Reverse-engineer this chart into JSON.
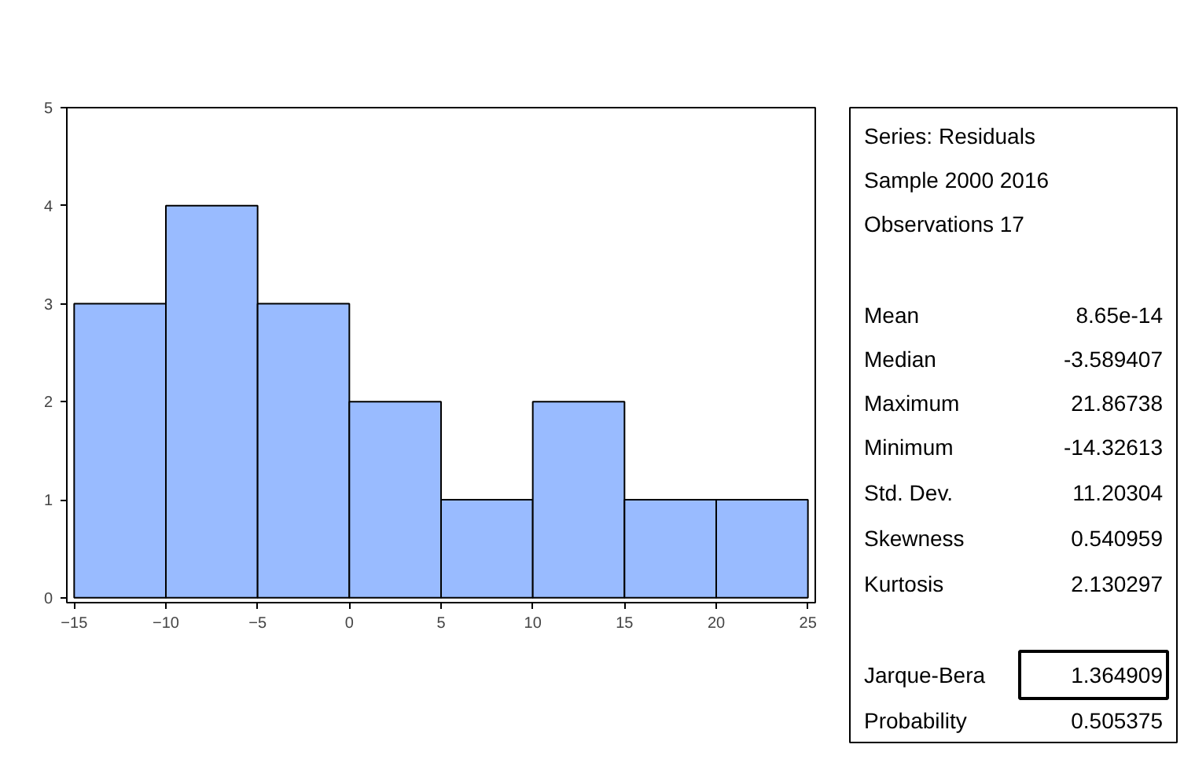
{
  "chart_data": {
    "type": "histogram",
    "bins": [
      -15,
      -10,
      -5,
      0,
      5,
      10,
      15,
      20,
      25
    ],
    "values": [
      3,
      4,
      3,
      2,
      1,
      2,
      1,
      1
    ],
    "color": "#99bbff",
    "xlim": [
      -15.4,
      25.4
    ],
    "ylim": [
      -0.05,
      5
    ],
    "xticks": [
      -15,
      -10,
      -5,
      0,
      5,
      10,
      15,
      20,
      25
    ],
    "yticks": [
      0,
      1,
      2,
      3,
      4,
      5
    ],
    "grid": false,
    "annotations": [
      "Series: Residuals",
      "Sample 2000 2016",
      "Observations 17",
      "Mean\t8.65e-14",
      "Median\t-3.589407",
      "Maximum\t21.86738",
      "Minimum\t-14.32613",
      "Std. Dev.\t11.20304",
      "Skewness\t0.540959",
      "Kurtosis\t2.130297",
      "Jarque-Bera\t1.364909",
      "Probability\t0.505375"
    ]
  }
}
